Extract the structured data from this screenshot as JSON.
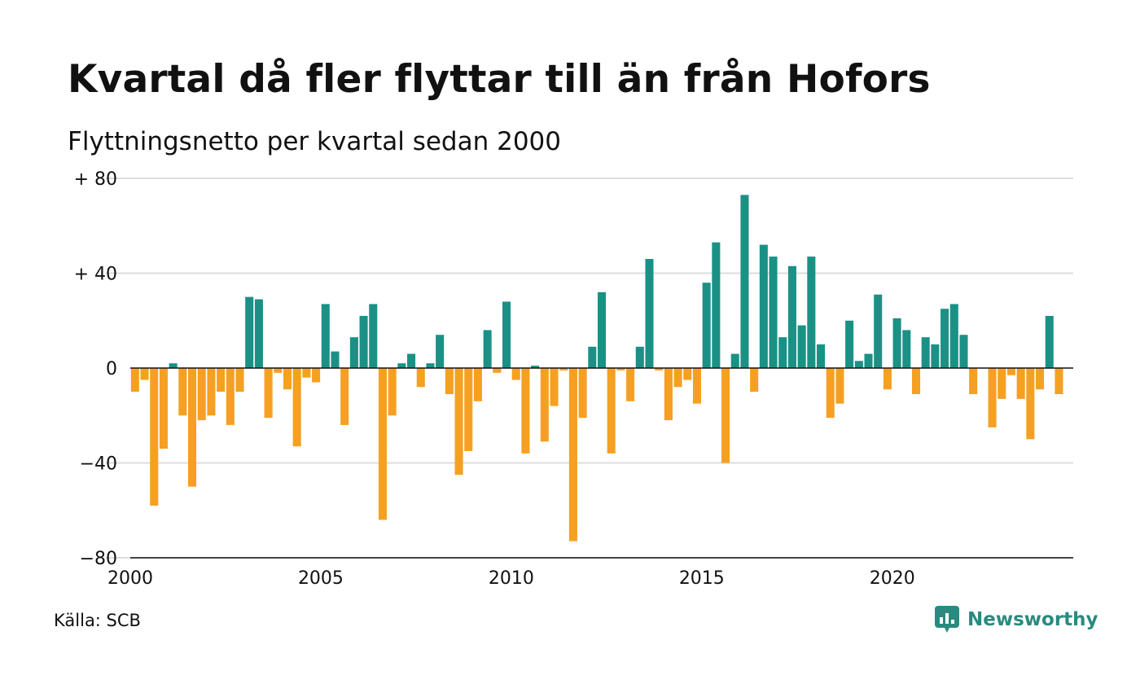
{
  "title": "Kvartal då fler flyttar till än från Hofors",
  "subtitle": "Flyttningsnetto per kvartal sedan 2000",
  "source": "Källa: SCB",
  "brand": {
    "name": "Newsworthy",
    "icon": "newsworthy-logo-icon"
  },
  "colors": {
    "positive": "#1b9186",
    "negative": "#f5a023",
    "grid": "#dddddd",
    "baseline": "#111111"
  },
  "chart_data": {
    "type": "bar",
    "title": "Kvartal då fler flyttar till än från Hofors",
    "subtitle": "Flyttningsnetto per kvartal sedan 2000",
    "xlabel": "",
    "ylabel": "",
    "x_start": 2000,
    "x_step": 0.25,
    "xlim": [
      2000,
      2024.75
    ],
    "ylim": [
      -80,
      80
    ],
    "yticks": [
      80,
      40,
      0,
      -40,
      -80
    ],
    "ytick_labels": [
      "+ 80",
      "+ 40",
      "0",
      "−40",
      "−80"
    ],
    "xticks": [
      2000,
      2005,
      2010,
      2015,
      2020
    ],
    "xtick_labels": [
      "2000",
      "2005",
      "2010",
      "2015",
      "2020"
    ],
    "grid": true,
    "values": [
      -10,
      -5,
      -58,
      -34,
      2,
      -20,
      -50,
      -22,
      -20,
      -10,
      -24,
      -10,
      30,
      29,
      -21,
      -2,
      -9,
      -33,
      -4,
      -6,
      27,
      7,
      -24,
      13,
      22,
      27,
      -64,
      -20,
      2,
      6,
      -8,
      2,
      14,
      -11,
      -45,
      -35,
      -14,
      16,
      -2,
      28,
      -5,
      -36,
      1,
      -31,
      -16,
      -1,
      -73,
      -21,
      9,
      32,
      -36,
      -1,
      -14,
      9,
      46,
      -1,
      -22,
      -8,
      -5,
      -15,
      36,
      53,
      -40,
      6,
      73,
      -10,
      52,
      47,
      13,
      43,
      18,
      47,
      10,
      -21,
      -15,
      20,
      3,
      6,
      31,
      -9,
      21,
      16,
      -11,
      13,
      10,
      25,
      27,
      14,
      -11,
      0,
      -25,
      -13,
      -3,
      -13,
      -30,
      -9,
      22,
      -11
    ]
  }
}
